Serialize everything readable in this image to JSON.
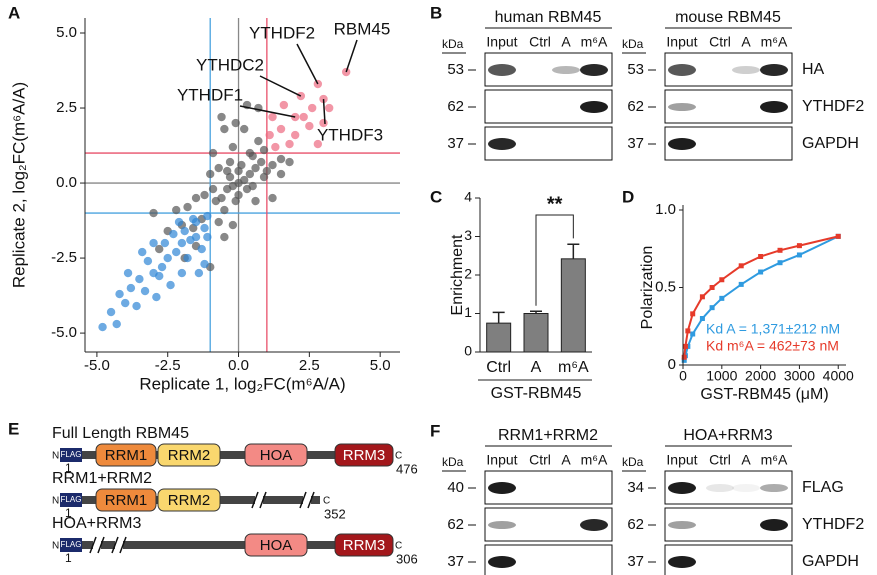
{
  "panel_labels": [
    "A",
    "B",
    "C",
    "D",
    "E",
    "F"
  ],
  "chart_data": [
    {
      "type": "scatter",
      "xlabel": "Replicate 1, log₂FC(m⁶A/A)",
      "ylabel": "Replicate 2, log₂FC(m⁶A/A)",
      "xlim": [
        -5.42,
        5.7
      ],
      "ylim": [
        -5.63,
        5.5
      ],
      "xticks": [
        {
          "value": -5,
          "label": "-5.0"
        },
        {
          "value": -2.5,
          "label": "-2.5"
        },
        {
          "value": 0,
          "label": "0.0"
        },
        {
          "value": 2.5,
          "label": "2.5"
        },
        {
          "value": 5,
          "label": "5.0"
        }
      ],
      "yticks": [
        {
          "value": -5,
          "label": "-5.0"
        },
        {
          "value": -2.5,
          "label": "-2.5"
        },
        {
          "value": 0,
          "label": "0.0"
        },
        {
          "value": 2.5,
          "label": "2.5"
        },
        {
          "value": 5,
          "label": "5.0"
        }
      ],
      "reference_lines": [
        {
          "axis": "x",
          "value": 0,
          "color": "#888888"
        },
        {
          "axis": "y",
          "value": 0,
          "color": "#888888"
        },
        {
          "axis": "x",
          "value": -1,
          "color": "#4aa3df"
        },
        {
          "axis": "y",
          "value": -1,
          "color": "#4aa3df"
        },
        {
          "axis": "x",
          "value": 1,
          "color": "#e8506a"
        },
        {
          "axis": "y",
          "value": 1,
          "color": "#e8506a"
        }
      ],
      "series": [
        {
          "color": "#555555",
          "x": [
            0,
            0.2,
            -0.2,
            0.4,
            -0.4,
            0.6,
            -0.6,
            0.3,
            -0.3,
            0.8,
            -0.8,
            0.5,
            -0.5,
            1.2,
            -1.2,
            0.1,
            -0.1,
            0.9,
            -0.9,
            1.5,
            -1.5,
            -2,
            -1.8,
            -0.7,
            -1,
            0.7,
            -0.2,
            -0.5,
            -0.9,
            -0.3,
            0.2,
            -0.6,
            0.3,
            0.7,
            1.2,
            0.6,
            -0.2,
            -1.5,
            -2.5,
            -1,
            -0.5,
            1.5,
            0.4,
            -1.3,
            -0.7,
            1,
            -2.2,
            -1.6,
            0,
            0,
            -0.4,
            0.5,
            -2.8,
            -1.9,
            1.8,
            -3,
            0.9,
            -0.1
          ],
          "y": [
            0,
            0.1,
            -0.1,
            0.3,
            -0.2,
            0.5,
            -0.5,
            -0.2,
            0.2,
            0.7,
            -0.6,
            0.9,
            -0.9,
            0.6,
            -0.4,
            0.6,
            -0.6,
            0.2,
            -0.2,
            0.8,
            -0.5,
            -1.4,
            -0.8,
            0.5,
            0.3,
            1.4,
            1.2,
            1.8,
            1,
            0.7,
            1.8,
            2.2,
            2.6,
            2.5,
            -0.5,
            -0.6,
            -1.4,
            -2.1,
            -1.6,
            -2.8,
            -1.8,
            0.3,
            1,
            -1.2,
            -1.3,
            0.4,
            -0.9,
            -1.5,
            0.4,
            -0.4,
            0.4,
            -0.1,
            -2.2,
            -2.5,
            0.7,
            -1,
            1.1,
            2
          ]
        },
        {
          "color": "#2f86d6",
          "x": [
            -1.2,
            -1.5,
            -2,
            -2.5,
            -3,
            -3.5,
            -4,
            -4.5,
            -4.8,
            -4.3,
            -3.8,
            -3.2,
            -2.8,
            -2.3,
            -1.8,
            -1.3,
            -2,
            -2.6,
            -3,
            -1.6,
            -1.1,
            -2.1,
            -3.4,
            -3.6,
            -2.4,
            -1.4,
            -1.9,
            -2.9,
            -3.9,
            -4.2,
            -1.2,
            -2.2,
            -1.7,
            -2.7,
            -3.3,
            -1.5,
            -1.1
          ],
          "y": [
            -1.5,
            -1.8,
            -2,
            -2.5,
            -3,
            -3.2,
            -4,
            -4.3,
            -4.8,
            -4.7,
            -3.5,
            -2.6,
            -3.1,
            -1.7,
            -2.5,
            -2.2,
            -3,
            -2,
            -2,
            -1.2,
            -1.1,
            -1.3,
            -2.3,
            -4.1,
            -3.4,
            -3,
            -1.6,
            -3.8,
            -3,
            -3.7,
            -2.7,
            -2.3,
            -1.9,
            -2.8,
            -3.6,
            -1.3,
            -1.8
          ]
        },
        {
          "color": "#ec6a80",
          "x": [
            1.3,
            1.5,
            1.8,
            2,
            2.3,
            2.5,
            2.8,
            1.2,
            1.6,
            2.2,
            2.8,
            3,
            3.2,
            3.8,
            1.1,
            2,
            3,
            2.6
          ],
          "y": [
            1.2,
            1.8,
            1.3,
            1.6,
            2.2,
            1.9,
            1.3,
            2.2,
            2.6,
            2.9,
            3.3,
            2.8,
            2.5,
            3.7,
            1.6,
            2.2,
            2,
            2.5
          ]
        }
      ],
      "annotations": [
        {
          "text": "RBM45",
          "x": 3.8,
          "y": 3.7
        },
        {
          "text": "YTHDF2",
          "x": 2.8,
          "y": 3.3
        },
        {
          "text": "YTHDC2",
          "x": 2.2,
          "y": 2.9
        },
        {
          "text": "YTHDF1",
          "x": 2,
          "y": 2.2
        },
        {
          "text": "YTHDF3",
          "x": 3,
          "y": 2.8
        }
      ]
    },
    {
      "type": "bar",
      "xlabel": "GST-RBM45",
      "ylabel": "Enrichment",
      "categories": [
        "Ctrl",
        "A",
        "m⁶A"
      ],
      "values": [
        0.75,
        1,
        2.42
      ],
      "errors": [
        0.28,
        0.06,
        0.38
      ],
      "color": "#7f7f7f",
      "ylim": [
        0,
        4
      ],
      "yticks": [
        0,
        1,
        2,
        3,
        4
      ],
      "significance": "**"
    },
    {
      "type": "line",
      "xlabel": "GST-RBM45 (μM)",
      "ylabel": "Polarization",
      "xlim": [
        0,
        4200
      ],
      "ylim": [
        0,
        1
      ],
      "xticks": [
        0,
        1000,
        2000,
        3000,
        4000
      ],
      "yticks": [
        0,
        0.5,
        {
          "value": 1,
          "label": "1.0"
        }
      ],
      "x": [
        31,
        62,
        125,
        250,
        500,
        750,
        1000,
        1500,
        2000,
        2500,
        3000,
        4000
      ],
      "series": [
        {
          "name": "Kd A = 1,371±212 nM",
          "color": "#2f9be0",
          "values": [
            0.03,
            0.06,
            0.12,
            0.2,
            0.3,
            0.37,
            0.43,
            0.52,
            0.6,
            0.66,
            0.71,
            0.83
          ]
        },
        {
          "name": "Kd m⁶A = 462±73 nM",
          "color": "#e63a2a",
          "values": [
            0.05,
            0.12,
            0.22,
            0.33,
            0.44,
            0.5,
            0.55,
            0.64,
            0.7,
            0.74,
            0.77,
            0.83
          ]
        }
      ]
    }
  ],
  "blots": [
    {
      "title": "human RBM45",
      "kda": "kDa",
      "lanes": [
        "Input",
        "Ctrl",
        "A",
        "m⁶A"
      ],
      "rows": [
        {
          "marker": "53"
        },
        {
          "marker": "62"
        },
        {
          "marker": "37"
        }
      ]
    },
    {
      "title": "mouse RBM45",
      "kda": "kDa",
      "lanes": [
        "Input",
        "Ctrl",
        "A",
        "m⁶A"
      ],
      "rows": [
        {
          "marker": "53",
          "label": "HA"
        },
        {
          "marker": "62",
          "label": "YTHDF2"
        },
        {
          "marker": "37",
          "label": "GAPDH"
        }
      ]
    },
    {
      "title": "RRM1+RRM2",
      "kda": "kDa",
      "lanes": [
        "Input",
        "Ctrl",
        "A",
        "m⁶A"
      ],
      "rows": [
        {
          "marker": "40"
        },
        {
          "marker": "62"
        },
        {
          "marker": "37"
        }
      ]
    },
    {
      "title": "HOA+RRM3",
      "kda": "kDa",
      "lanes": [
        "Input",
        "Ctrl",
        "A",
        "m⁶A"
      ],
      "rows": [
        {
          "marker": "34",
          "label": "FLAG"
        },
        {
          "marker": "62",
          "label": "YTHDF2"
        },
        {
          "marker": "37",
          "label": "GAPDH"
        }
      ]
    }
  ],
  "constructs": {
    "tag": "FLAG",
    "n_terminus": "N",
    "c_terminus": "C",
    "items": [
      {
        "name": "Full Length RBM45",
        "start": "1",
        "end": "476",
        "domains": [
          "RRM1",
          "RRM2",
          "HOA",
          "RRM3"
        ]
      },
      {
        "name": "RRM1+RRM2",
        "start": "1",
        "end": "352",
        "domains": [
          "RRM1",
          "RRM2"
        ]
      },
      {
        "name": "HOA+RRM3",
        "start": "1",
        "end": "306",
        "domains": [
          "HOA",
          "RRM3"
        ]
      }
    ]
  }
}
